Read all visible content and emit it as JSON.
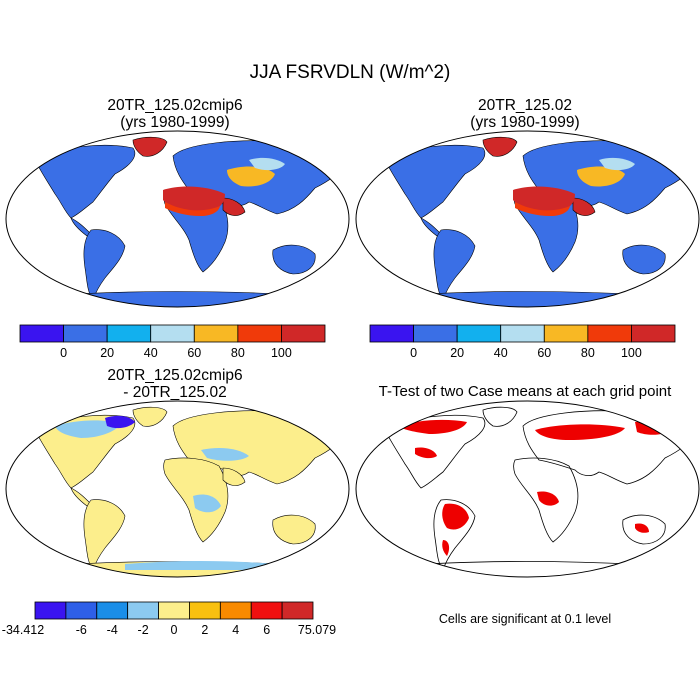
{
  "title": "JJA FSRVDLN (W/m^2)",
  "panels": [
    {
      "title_line1": "20TR_125.02cmip6",
      "title_line2": "(yrs 1980-1999)"
    },
    {
      "title_line1": "20TR_125.02",
      "title_line2": "(yrs 1980-1999)"
    },
    {
      "title_line1": "20TR_125.02cmip6",
      "title_line2": "- 20TR_125.02"
    },
    {
      "title_line1": "T-Test of two Case means at each grid point"
    }
  ],
  "colorbar_main": {
    "colors": [
      "#3a14f0",
      "#3a6fe6",
      "#12b0ee",
      "#b4def0",
      "#f8b824",
      "#f03a0a",
      "#d02828"
    ],
    "labels": [
      "0",
      "20",
      "40",
      "60",
      "80",
      "100"
    ]
  },
  "colorbar_diff": {
    "colors": [
      "#3a14f0",
      "#2e5fe8",
      "#1a8ee8",
      "#8ccaf0",
      "#fcee8c",
      "#f8c010",
      "#f88a00",
      "#f01010",
      "#d02828"
    ],
    "labels": [
      "-34.412",
      "-6",
      "-4",
      "-2",
      "0",
      "2",
      "4",
      "6",
      "75.079"
    ]
  },
  "significance_note": "Cells are significant at 0.1 level",
  "map_colors": {
    "mean_land": "#3a6fe6",
    "mean_desert": "#d02828",
    "mean_desert_edge": "#f03a0a",
    "mean_arid": "#f8b824",
    "mean_light": "#b4def0",
    "diff_land": "#fcee8c",
    "diff_neg": "#8ccaf0",
    "diff_strong_neg": "#3a14f0",
    "signif": "#ee0000"
  }
}
